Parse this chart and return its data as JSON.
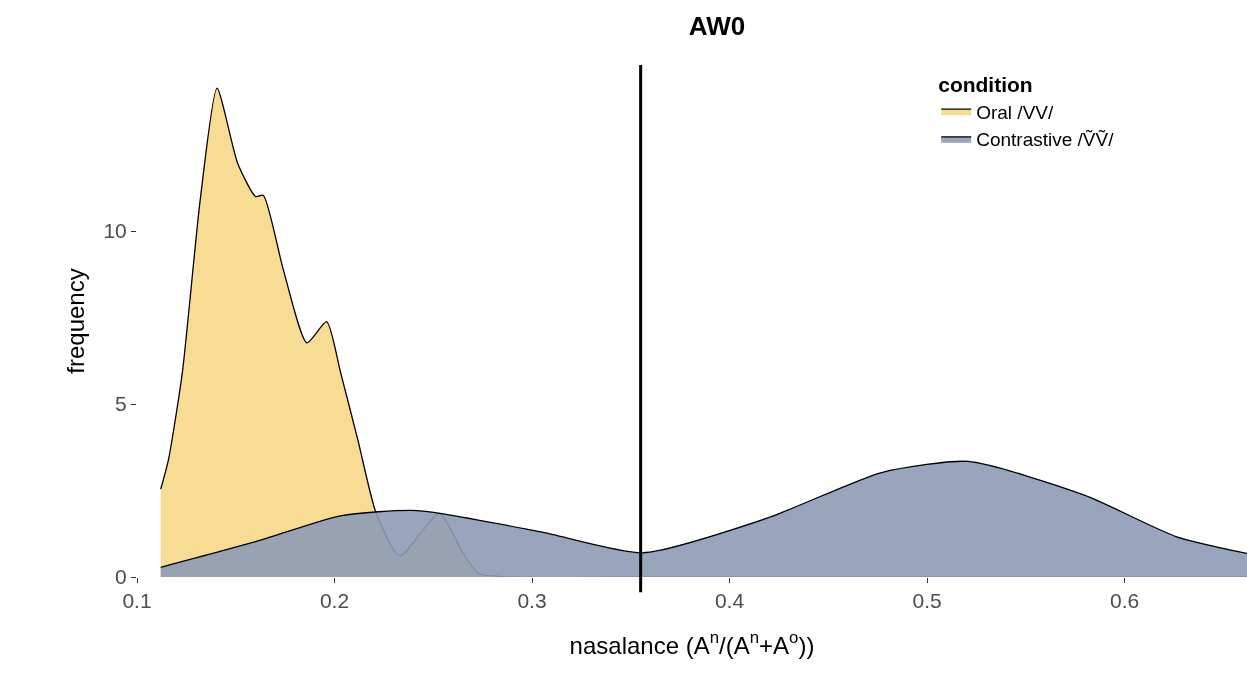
{
  "chart_data": {
    "type": "area",
    "title": "AW0",
    "xlabel": "nasalance (A$^{n}$/(A$^{n}$+A$^{o}$))",
    "ylabel": "frequency",
    "legend_title": "condition",
    "series": [
      {
        "name": "Oral /VV/",
        "color": "#f9dc94",
        "x": [
          0.112,
          0.116,
          0.123,
          0.132,
          0.1405,
          0.151,
          0.16,
          0.164,
          0.174,
          0.186,
          0.196,
          0.203,
          0.212,
          0.221,
          0.233,
          0.253,
          0.265,
          0.273,
          0.29,
          0.35,
          0.45,
          0.55,
          0.662
        ],
        "values": [
          2.54,
          3.41,
          5.93,
          10.9,
          14.13,
          11.95,
          11.0,
          11.03,
          8.9,
          6.77,
          7.38,
          5.93,
          3.92,
          1.86,
          0.61,
          1.84,
          0.7,
          0.1,
          0,
          0,
          0,
          0,
          0
        ]
      },
      {
        "name": "Contrastive /ṼṼ/",
        "color": "#8e9bb5",
        "x": [
          0.112,
          0.16,
          0.203,
          0.242,
          0.304,
          0.356,
          0.419,
          0.477,
          0.521,
          0.58,
          0.626,
          0.662
        ],
        "values": [
          0.28,
          1.02,
          1.77,
          1.92,
          1.31,
          0.7,
          1.7,
          3.02,
          3.34,
          2.36,
          1.17,
          0.68
        ]
      }
    ],
    "xlim": [
      0.1,
      0.662
    ],
    "xticks": [
      0.1,
      0.2,
      0.3,
      0.4,
      0.5,
      0.6
    ],
    "ylim": [
      0,
      14.8
    ],
    "yticks": [
      0,
      5,
      10
    ],
    "ref_lines": [
      {
        "axis": "x",
        "value": 0.355,
        "color": "#000000"
      }
    ],
    "grid": false,
    "legend": "top right"
  }
}
